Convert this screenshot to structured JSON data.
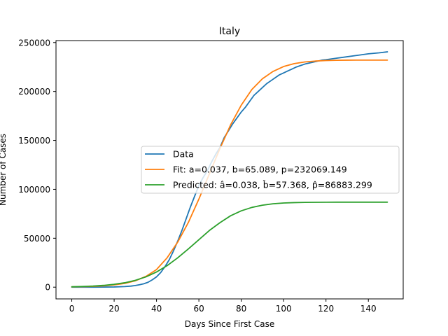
{
  "chart_data": {
    "type": "line",
    "title": "Italy",
    "xlabel": "Days Since First Case",
    "ylabel": "Number of Cases",
    "xlim": [
      -7.45,
      156.45
    ],
    "ylim": [
      -12000,
      252000
    ],
    "xticks": [
      0,
      20,
      40,
      60,
      80,
      100,
      120,
      140
    ],
    "xtick_labels": [
      "0",
      "20",
      "40",
      "60",
      "80",
      "100",
      "120",
      "140"
    ],
    "yticks": [
      0,
      50000,
      100000,
      150000,
      200000,
      250000
    ],
    "ytick_labels": [
      "0",
      "50000",
      "100000",
      "150000",
      "200000",
      "250000"
    ],
    "grid": false,
    "legend_position": "center-right",
    "series": [
      {
        "name": "Data",
        "color": "#1f77b4",
        "x": [
          0,
          10,
          20,
          25,
          28,
          30,
          32,
          34,
          36,
          38,
          40,
          42,
          44,
          46,
          48,
          50,
          52,
          54,
          56,
          58,
          60,
          62,
          64,
          66,
          68,
          70,
          72,
          74,
          76,
          78,
          80,
          82,
          84,
          86,
          88,
          90,
          92,
          94,
          96,
          98,
          100,
          102,
          104,
          106,
          108,
          110,
          112,
          114,
          116,
          118,
          120,
          125,
          130,
          135,
          140,
          145,
          149
        ],
        "values": [
          0,
          0,
          200,
          600,
          1100,
          1700,
          2500,
          3500,
          5000,
          7500,
          10500,
          15000,
          21000,
          28000,
          37000,
          47000,
          58000,
          70000,
          82000,
          93000,
          104000,
          112000,
          119000,
          128000,
          136000,
          143000,
          153000,
          160000,
          167000,
          173000,
          179000,
          184000,
          190000,
          196000,
          200000,
          204000,
          208000,
          211000,
          214000,
          217000,
          219000,
          221000,
          223000,
          225000,
          226500,
          228000,
          229000,
          230000,
          231000,
          232000,
          232500,
          234000,
          235500,
          237000,
          238500,
          239500,
          240500
        ]
      },
      {
        "name": "Fit: a=0.037, b=65.089, p=232069.149",
        "color": "#ff7f0e",
        "x": [
          0,
          5,
          10,
          15,
          20,
          25,
          30,
          35,
          40,
          45,
          50,
          55,
          60,
          65,
          70,
          75,
          80,
          85,
          90,
          95,
          100,
          105,
          110,
          115,
          120,
          125,
          130,
          135,
          140,
          145,
          149
        ],
        "values": [
          300,
          500,
          800,
          1300,
          2300,
          3800,
          6500,
          11000,
          18000,
          30000,
          46000,
          66000,
          90000,
          116000,
          142000,
          166000,
          186000,
          202000,
          213000,
          220500,
          225500,
          228500,
          230200,
          231100,
          231600,
          231900,
          232000,
          232050,
          232060,
          232065,
          232069
        ]
      },
      {
        "name": "Predicted: â=0.038, b̂=57.368, p̂=86883.299",
        "color": "#2ca02c",
        "x": [
          0,
          5,
          10,
          15,
          20,
          25,
          30,
          35,
          40,
          45,
          50,
          55,
          60,
          65,
          70,
          75,
          80,
          85,
          90,
          95,
          100,
          105,
          110,
          115,
          120,
          125,
          130,
          135,
          140,
          145,
          149
        ],
        "values": [
          400,
          700,
          1100,
          1800,
          2900,
          4500,
          7000,
          10500,
          15500,
          22000,
          30000,
          39000,
          48500,
          58000,
          66000,
          73000,
          78000,
          81500,
          83800,
          85200,
          86000,
          86400,
          86650,
          86750,
          86820,
          86850,
          86870,
          86878,
          86881,
          86882,
          86883
        ]
      }
    ]
  }
}
